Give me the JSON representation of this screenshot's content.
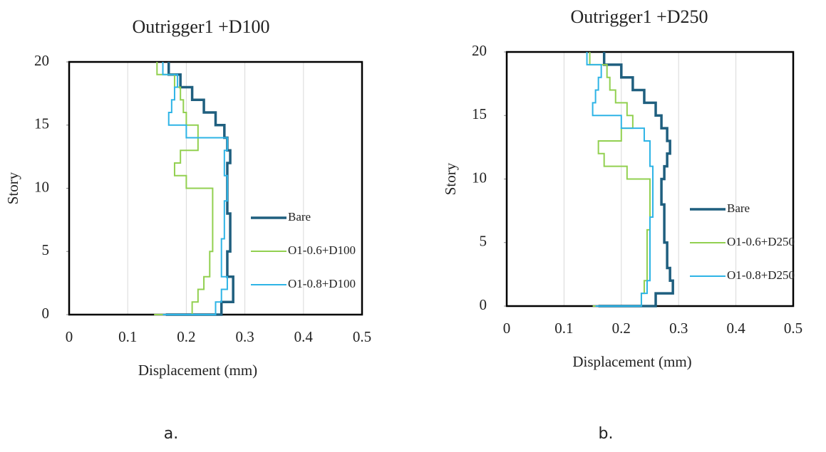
{
  "chart_data": [
    {
      "type": "step",
      "title": "Outrigger1 +D100",
      "panel_label": "a.",
      "x_label": "Displacement (mm)",
      "y_label": "Story",
      "y": [
        0,
        1,
        2,
        3,
        4,
        5,
        6,
        7,
        8,
        9,
        10,
        11,
        12,
        13,
        14,
        15,
        16,
        17,
        18,
        19,
        20
      ],
      "series": [
        {
          "name": "Bare",
          "color": "#1f5f7f",
          "values": [
            0.165,
            0.26,
            0.28,
            0.28,
            0.27,
            0.27,
            0.275,
            0.275,
            0.275,
            0.27,
            0.27,
            0.27,
            0.27,
            0.275,
            0.27,
            0.265,
            0.25,
            0.23,
            0.21,
            0.19,
            0.17
          ]
        },
        {
          "name": "O1-0.6+D100",
          "color": "#92d050",
          "values": [
            0.145,
            0.21,
            0.22,
            0.23,
            0.24,
            0.24,
            0.245,
            0.245,
            0.245,
            0.245,
            0.245,
            0.2,
            0.18,
            0.19,
            0.22,
            0.22,
            0.2,
            0.195,
            0.19,
            0.18,
            0.15
          ]
        },
        {
          "name": "O1-0.8+D100",
          "color": "#2eb4e6",
          "values": [
            0.16,
            0.25,
            0.26,
            0.27,
            0.26,
            0.26,
            0.26,
            0.265,
            0.265,
            0.265,
            0.27,
            0.27,
            0.265,
            0.265,
            0.27,
            0.2,
            0.17,
            0.175,
            0.18,
            0.185,
            0.16
          ]
        }
      ],
      "xlim": [
        0,
        0.5
      ],
      "xticks": [
        0,
        0.1,
        0.2,
        0.3,
        0.4,
        0.5
      ],
      "ylim": [
        0,
        20
      ],
      "yticks": [
        0,
        5,
        10,
        15,
        20
      ]
    },
    {
      "type": "step",
      "title": "Outrigger1 +D250",
      "panel_label": "b.",
      "x_label": "Displacement (mm)",
      "y_label": "Story",
      "y": [
        0,
        1,
        2,
        3,
        4,
        5,
        6,
        7,
        8,
        9,
        10,
        11,
        12,
        13,
        14,
        15,
        16,
        17,
        18,
        19,
        20
      ],
      "series": [
        {
          "name": "Bare",
          "color": "#1f5f7f",
          "values": [
            0.16,
            0.26,
            0.29,
            0.285,
            0.28,
            0.28,
            0.275,
            0.275,
            0.275,
            0.27,
            0.27,
            0.275,
            0.28,
            0.285,
            0.28,
            0.27,
            0.26,
            0.24,
            0.22,
            0.2,
            0.17
          ]
        },
        {
          "name": "O1-0.6+D250",
          "color": "#92d050",
          "values": [
            0.15,
            0.235,
            0.24,
            0.245,
            0.245,
            0.245,
            0.245,
            0.25,
            0.25,
            0.25,
            0.25,
            0.21,
            0.17,
            0.16,
            0.2,
            0.22,
            0.21,
            0.19,
            0.18,
            0.175,
            0.145
          ]
        },
        {
          "name": "O1-0.8+D250",
          "color": "#2eb4e6",
          "values": [
            0.155,
            0.235,
            0.245,
            0.25,
            0.25,
            0.25,
            0.25,
            0.25,
            0.255,
            0.255,
            0.255,
            0.255,
            0.25,
            0.25,
            0.24,
            0.2,
            0.15,
            0.155,
            0.16,
            0.165,
            0.14
          ]
        }
      ],
      "xlim": [
        0,
        0.5
      ],
      "xticks": [
        0,
        0.1,
        0.2,
        0.3,
        0.4,
        0.5
      ],
      "ylim": [
        0,
        20
      ],
      "yticks": [
        0,
        5,
        10,
        15,
        20
      ]
    }
  ]
}
